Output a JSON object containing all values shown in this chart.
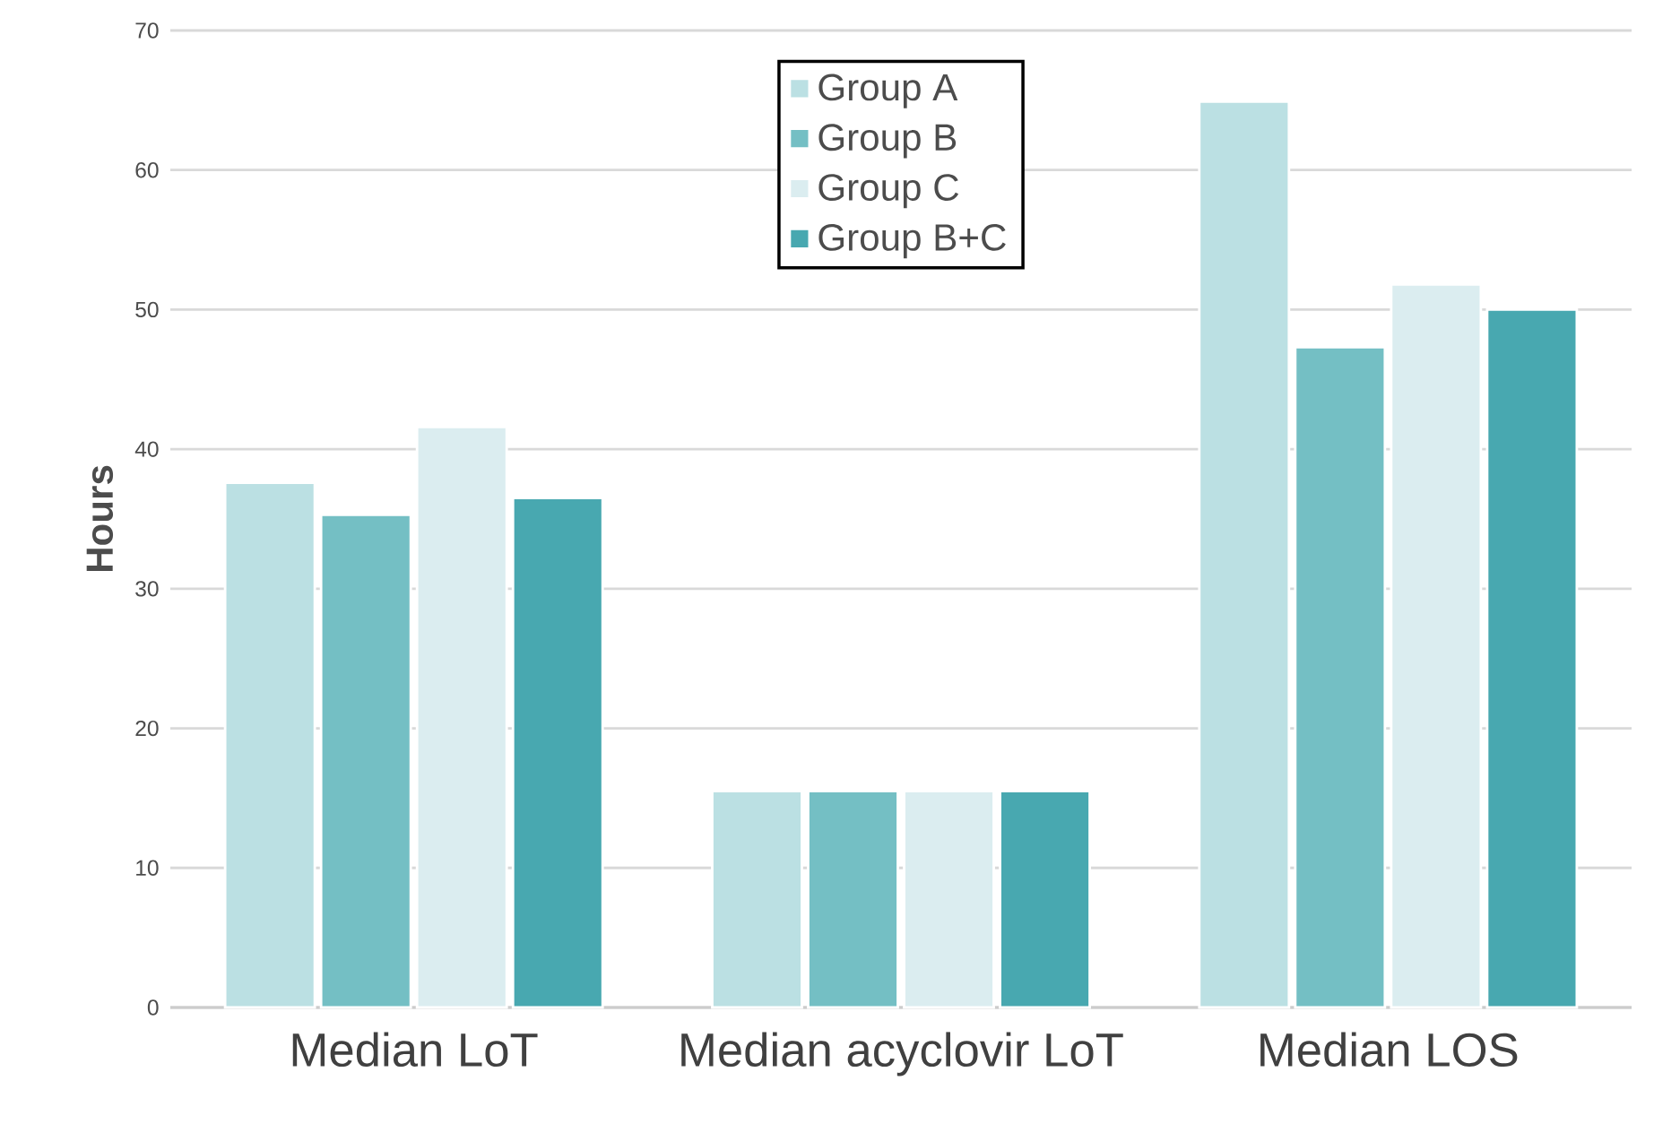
{
  "chart_data": {
    "type": "bar",
    "ylabel": "Hours",
    "categories": [
      "Median LoT",
      "Median acyclovir LoT",
      "Median LOS"
    ],
    "series": [
      {
        "name": "Group A",
        "color": "#bbe0e3",
        "values": [
          37.6,
          15.5,
          64.9
        ]
      },
      {
        "name": "Group B",
        "color": "#74bfc4",
        "values": [
          35.3,
          15.5,
          47.3
        ]
      },
      {
        "name": "Group C",
        "color": "#dbedf0",
        "values": [
          41.6,
          15.5,
          51.8
        ]
      },
      {
        "name": "Group B+C",
        "color": "#48a8b0",
        "values": [
          36.5,
          15.5,
          50.0
        ]
      }
    ],
    "ylim": [
      0,
      70
    ],
    "yticks": [
      0,
      10,
      20,
      30,
      40,
      50,
      60,
      70
    ],
    "grid": "y",
    "legend": "top"
  }
}
